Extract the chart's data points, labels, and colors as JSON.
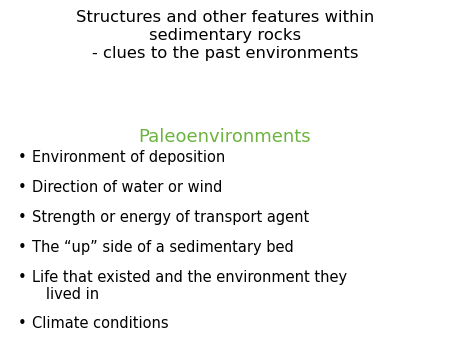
{
  "title_lines": [
    "Structures and other features within",
    "sedimentary rocks",
    "- clues to the past environments"
  ],
  "subtitle": "Paleoenvironments",
  "title_color": "#000000",
  "subtitle_color": "#6db33f",
  "bullet_points": [
    "Environment of deposition",
    "Direction of water or wind",
    "Strength or energy of transport agent",
    "The “up” side of a sedimentary bed",
    "Life that existed and the environment they\n   lived in",
    "Climate conditions"
  ],
  "bullet_color": "#000000",
  "background_color": "#ffffff",
  "title_fontsize": 11.8,
  "subtitle_fontsize": 13.0,
  "bullet_fontsize": 10.5,
  "bullet_symbol": "•"
}
